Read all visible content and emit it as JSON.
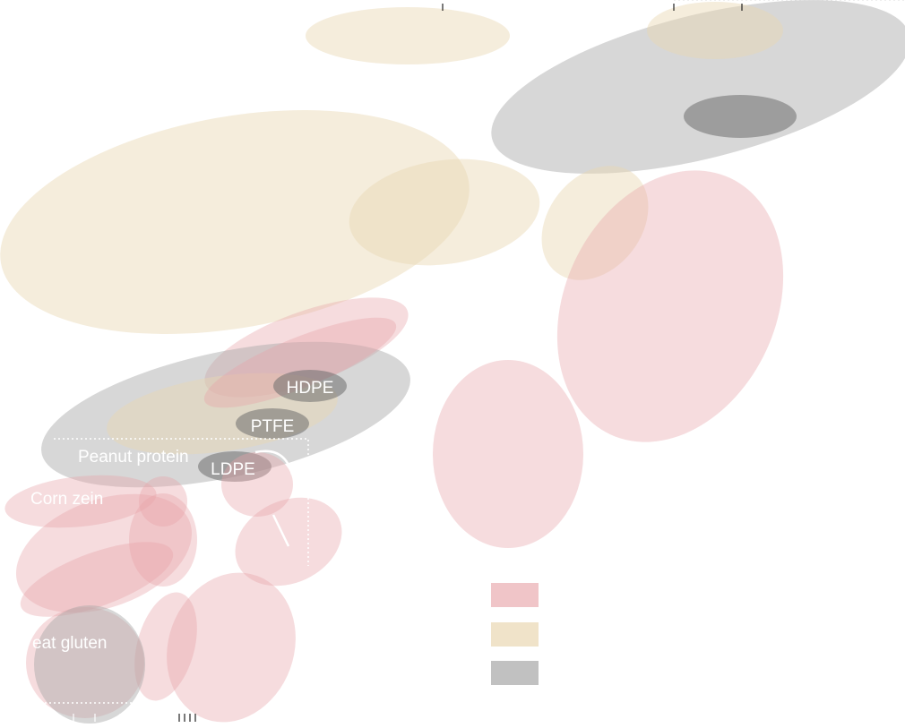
{
  "chart_data": {
    "type": "scatter",
    "description_style": "Ashby-style material property bubble chart (overlapping ellipses)",
    "title": "",
    "xlabel": "",
    "ylabel": "",
    "axes_visible": false,
    "grid": false,
    "legend_placement": "bottom-center",
    "series": [
      {
        "key": "pink",
        "color": "#e8a3a8",
        "opacity": 0.38
      },
      {
        "key": "beige",
        "color": "#e9d7b2",
        "opacity": 0.45
      },
      {
        "key": "gray",
        "color": "#a6a6a6",
        "opacity": 0.45
      },
      {
        "key": "dark",
        "color": "#6e6e6e",
        "opacity": 0.55
      }
    ],
    "point_labels": [
      "HDPE",
      "PTFE",
      "LDPE",
      "Peanut protein",
      "Corn zein",
      "eat gluten"
    ]
  }
}
